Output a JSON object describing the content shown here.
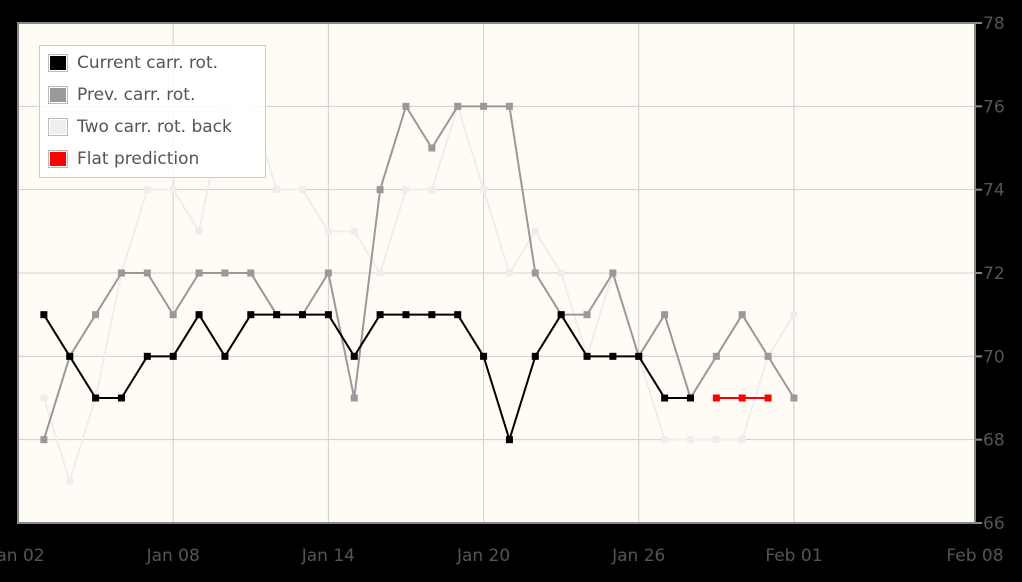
{
  "chart_data": {
    "type": "line",
    "x_axis": {
      "type": "date",
      "min": "2024-01-02",
      "max": "2024-02-08",
      "ticks": [
        {
          "value": "2024-01-02",
          "label": "Jan 02"
        },
        {
          "value": "2024-01-08",
          "label": "Jan 08"
        },
        {
          "value": "2024-01-14",
          "label": "Jan 14"
        },
        {
          "value": "2024-01-20",
          "label": "Jan 20"
        },
        {
          "value": "2024-01-26",
          "label": "Jan 26"
        },
        {
          "value": "2024-02-01",
          "label": "Feb 01"
        },
        {
          "value": "2024-02-08",
          "label": "Feb 08"
        }
      ]
    },
    "y_axis": {
      "position": "right",
      "min": 66,
      "max": 78,
      "ticks": [
        66,
        68,
        70,
        72,
        74,
        76,
        78
      ]
    },
    "grid": true,
    "legend": {
      "position": "top-left"
    },
    "series": [
      {
        "name": "Two carr. rot. back",
        "color": "#eeeeee",
        "dates": [
          "2024-01-03",
          "2024-01-04",
          "2024-01-05",
          "2024-01-06",
          "2024-01-07",
          "2024-01-08",
          "2024-01-09",
          "2024-01-10",
          "2024-01-11",
          "2024-01-12",
          "2024-01-13",
          "2024-01-14",
          "2024-01-15",
          "2024-01-16",
          "2024-01-17",
          "2024-01-18",
          "2024-01-19",
          "2024-01-20",
          "2024-01-21",
          "2024-01-22",
          "2024-01-23",
          "2024-01-24",
          "2024-01-25",
          "2024-01-26",
          "2024-01-27",
          "2024-01-28",
          "2024-01-29",
          "2024-01-30",
          "2024-01-31",
          "2024-02-01"
        ],
        "values": [
          69,
          67,
          69,
          72,
          74,
          74,
          73,
          76,
          76,
          74,
          74,
          73,
          73,
          72,
          74,
          74,
          76,
          74,
          72,
          73,
          72,
          70,
          72,
          70,
          68,
          68,
          68,
          68,
          70,
          71
        ]
      },
      {
        "name": "Prev. carr. rot.",
        "color": "#999999",
        "dates": [
          "2024-01-03",
          "2024-01-04",
          "2024-01-05",
          "2024-01-06",
          "2024-01-07",
          "2024-01-08",
          "2024-01-09",
          "2024-01-10",
          "2024-01-11",
          "2024-01-12",
          "2024-01-13",
          "2024-01-14",
          "2024-01-15",
          "2024-01-16",
          "2024-01-17",
          "2024-01-18",
          "2024-01-19",
          "2024-01-20",
          "2024-01-21",
          "2024-01-22",
          "2024-01-23",
          "2024-01-24",
          "2024-01-25",
          "2024-01-26",
          "2024-01-27",
          "2024-01-28",
          "2024-01-29",
          "2024-01-30",
          "2024-01-31",
          "2024-02-01"
        ],
        "values": [
          68,
          70,
          71,
          72,
          72,
          71,
          72,
          72,
          72,
          71,
          71,
          72,
          69,
          74,
          76,
          75,
          76,
          76,
          76,
          72,
          71,
          71,
          72,
          70,
          71,
          69,
          70,
          71,
          70,
          69
        ]
      },
      {
        "name": "Current carr. rot.",
        "color": "#000000",
        "dates": [
          "2024-01-03",
          "2024-01-04",
          "2024-01-05",
          "2024-01-06",
          "2024-01-07",
          "2024-01-08",
          "2024-01-09",
          "2024-01-10",
          "2024-01-11",
          "2024-01-12",
          "2024-01-13",
          "2024-01-14",
          "2024-01-15",
          "2024-01-16",
          "2024-01-17",
          "2024-01-18",
          "2024-01-19",
          "2024-01-20",
          "2024-01-21",
          "2024-01-22",
          "2024-01-23",
          "2024-01-24",
          "2024-01-25",
          "2024-01-26",
          "2024-01-27",
          "2024-01-28"
        ],
        "values": [
          71,
          70,
          69,
          69,
          70,
          70,
          71,
          70,
          71,
          71,
          71,
          71,
          70,
          71,
          71,
          71,
          71,
          70,
          68,
          70,
          71,
          70,
          70,
          70,
          69,
          69
        ]
      },
      {
        "name": "Flat prediction",
        "color": "#ff0000",
        "dates": [
          "2024-01-29",
          "2024-01-30",
          "2024-01-31"
        ],
        "values": [
          69,
          69,
          69
        ]
      }
    ]
  }
}
